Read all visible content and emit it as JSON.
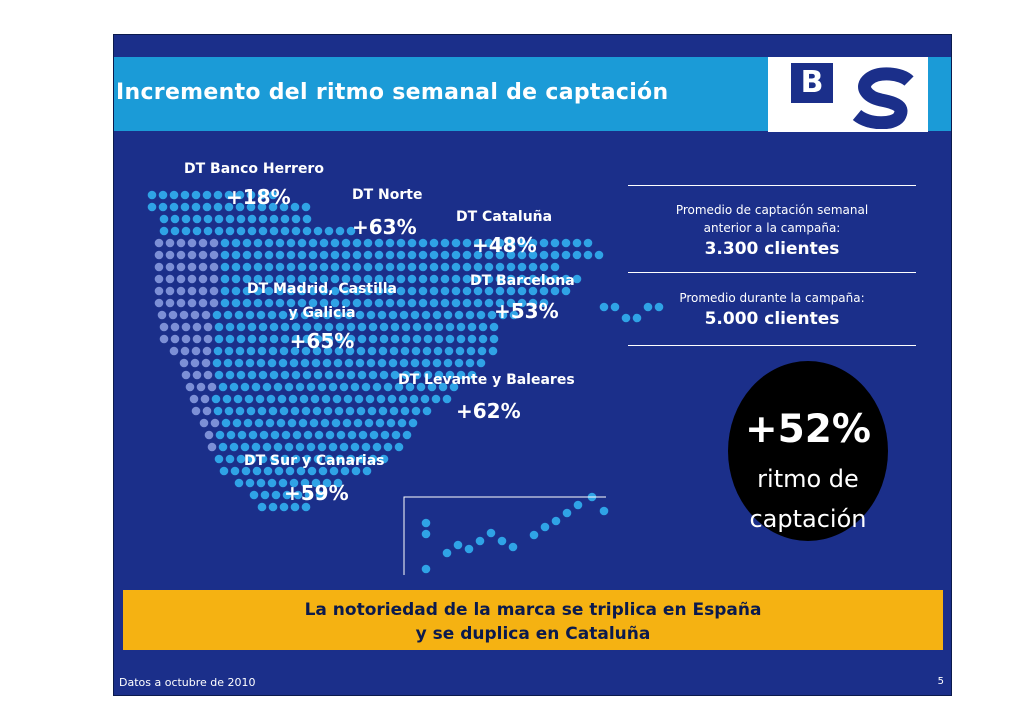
{
  "header": {
    "title": "Incremento del ritmo semanal de captación",
    "logo_letter": "B"
  },
  "map": {
    "regions": [
      {
        "name": "DT Banco Herrero",
        "pct": "+18%"
      },
      {
        "name": "DT Norte",
        "pct": "+63%"
      },
      {
        "name": "DT Cataluña",
        "pct": "+48%"
      },
      {
        "name_line1": "DT Madrid, Castilla",
        "name_line2": "y Galicia",
        "pct": "+65%"
      },
      {
        "name": "DT Barcelona",
        "pct": "+53%"
      },
      {
        "name": "DT Levante y Baleares",
        "pct": "+62%"
      },
      {
        "name": "DT Sur y Canarias",
        "pct": "+59%"
      }
    ]
  },
  "stats": {
    "before_line1": "Promedio de captación semanal",
    "before_line2": "anterior a la campaña:",
    "before_value": "3.300 clientes",
    "during_caption": "Promedio durante la campaña:",
    "during_value": "5.000 clientes"
  },
  "highlight": {
    "pct": "+52%",
    "line1": "ritmo de",
    "line2": "captación"
  },
  "banner": {
    "line1": "La notoriedad de la marca se triplica en España",
    "line2": "y se duplica en Cataluña"
  },
  "footer": {
    "note": "Datos a octubre de 2010",
    "page": "5"
  },
  "colors": {
    "background": "#1b2f8a",
    "title_band": "#1b9bd7",
    "dots": "#2fa3e6",
    "portugal_dots": "#7c8fd6",
    "banner": "#f5b212"
  }
}
